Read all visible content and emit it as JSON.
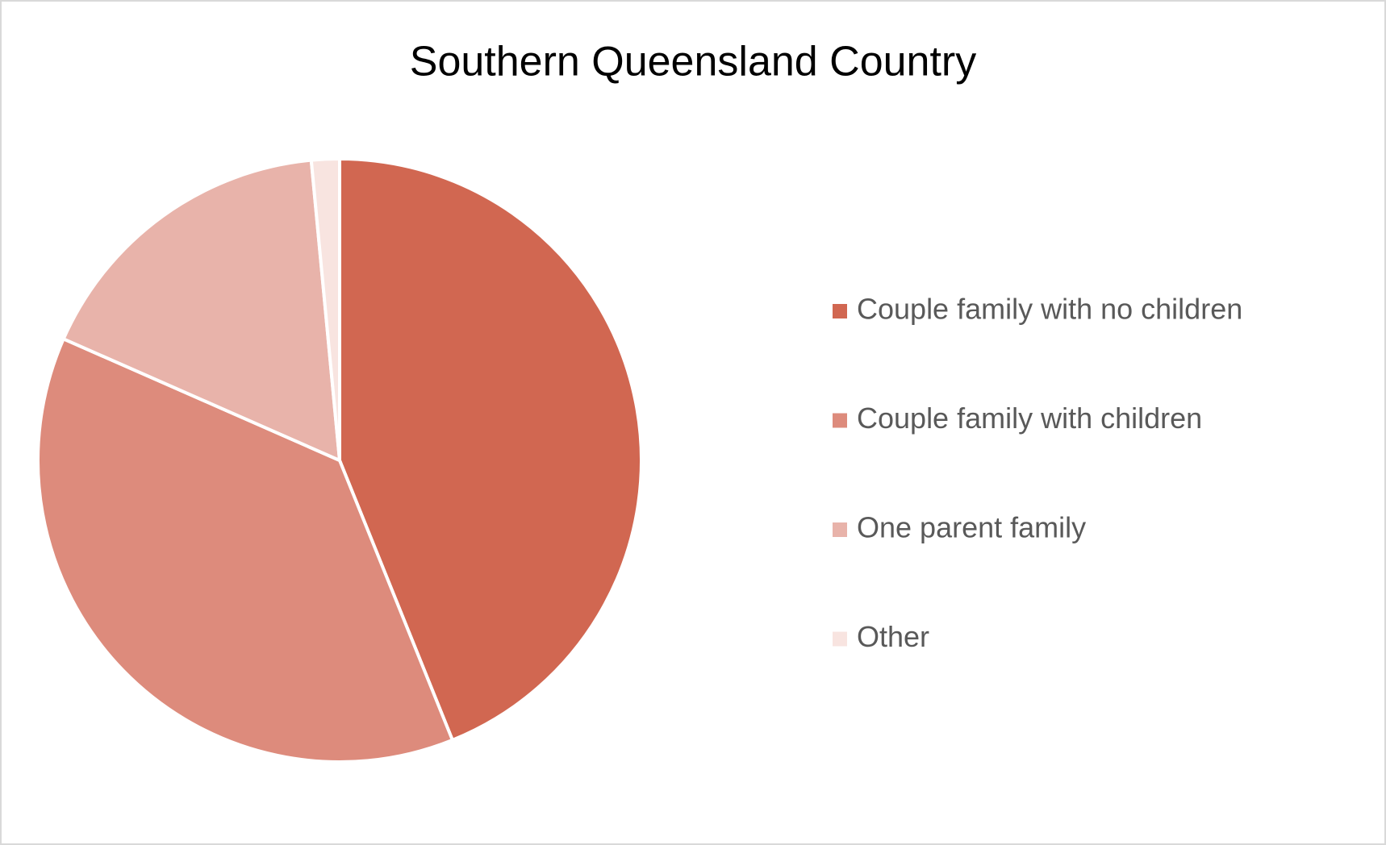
{
  "chart_data": {
    "type": "pie",
    "title": "Southern Queensland Country",
    "categories": [
      "Couple family with no children",
      "Couple family with children",
      "One parent family",
      "Other"
    ],
    "values": [
      43.9,
      37.7,
      16.9,
      1.5
    ],
    "colors": [
      "#d16751",
      "#dd8b7c",
      "#e8b3aa",
      "#f8e4e0"
    ],
    "legend": "right"
  }
}
